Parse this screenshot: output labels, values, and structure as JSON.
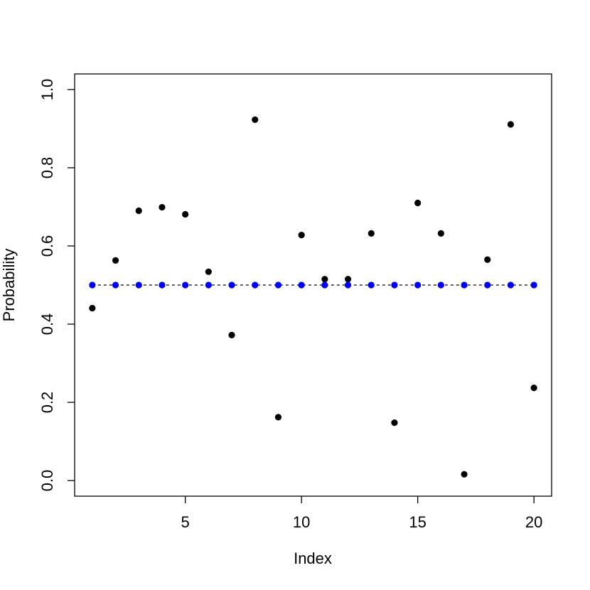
{
  "chart_data": {
    "type": "scatter",
    "xlabel": "Index",
    "ylabel": "Probability",
    "x": [
      1,
      2,
      3,
      4,
      5,
      6,
      7,
      8,
      9,
      10,
      11,
      12,
      13,
      14,
      15,
      16,
      17,
      18,
      19,
      20
    ],
    "series": [
      {
        "color": "#000000",
        "values": [
          0.441,
          0.563,
          0.69,
          0.699,
          0.681,
          0.534,
          0.372,
          0.923,
          0.162,
          0.628,
          0.515,
          0.515,
          0.632,
          0.148,
          0.71,
          0.632,
          0.016,
          0.565,
          0.911,
          0.237
        ]
      },
      {
        "color": "#0000ff",
        "values": [
          0.5,
          0.5,
          0.5,
          0.5,
          0.5,
          0.5,
          0.5,
          0.5,
          0.5,
          0.5,
          0.5,
          0.5,
          0.5,
          0.5,
          0.5,
          0.5,
          0.5,
          0.5,
          0.5,
          0.5
        ]
      }
    ],
    "reference_line": 0.5,
    "xlim": [
      0.24,
      20.76
    ],
    "ylim": [
      -0.04,
      1.04
    ],
    "xticks": [
      5,
      10,
      15,
      20
    ],
    "yticks": [
      {
        "value": 0,
        "label": "0.0"
      },
      0.2,
      0.4,
      0.6,
      0.8,
      {
        "value": 1,
        "label": "1.0"
      }
    ]
  }
}
